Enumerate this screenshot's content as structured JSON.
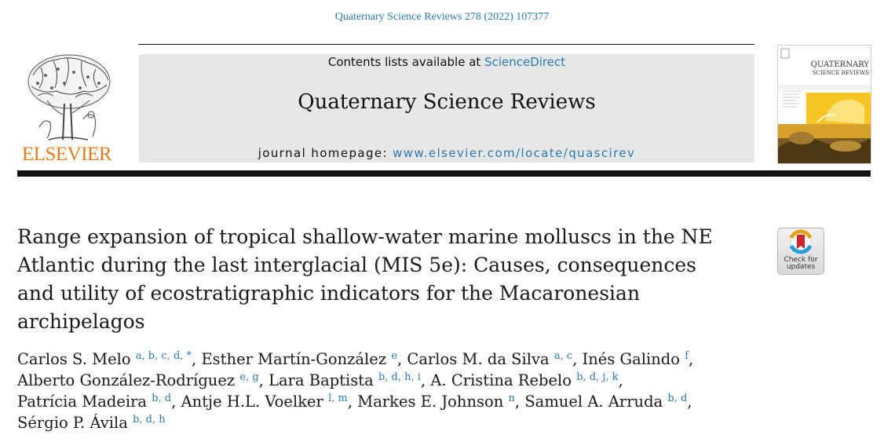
{
  "header": {
    "citation": "Quaternary Science Reviews 278 (2022) 107377",
    "publisher_word": "ELSEVIER",
    "contents_prefix": "Contents lists available at ",
    "contents_link": "ScienceDirect",
    "journal_name": "Quaternary Science Reviews",
    "homepage_prefix": "journal homepage: ",
    "homepage_link": "www.elsevier.com/locate/quascirev",
    "cover_title_1": "QUATERNARY",
    "cover_title_2": "SCIENCE REVIEWS"
  },
  "badge": {
    "line1": "Check for",
    "line2": "updates"
  },
  "article": {
    "title_line1": "Range expansion of tropical shallow-water marine molluscs in the NE",
    "title_line2": "Atlantic during the last interglacial (MIS 5e): Causes, consequences",
    "title_line3": "and utility of ecostratigraphic indicators for the Macaronesian",
    "title_line4": "archipelagos"
  },
  "authors": [
    {
      "name": "Carlos S. Melo",
      "aff": "a, b, c, d, *",
      "sep": ", "
    },
    {
      "name": "Esther Martín-González",
      "aff": "e",
      "sep": ", "
    },
    {
      "name": "Carlos M. da Silva",
      "aff": "a, c",
      "sep": ", "
    },
    {
      "name": "Inés Galindo",
      "aff": "f",
      "sep": ","
    },
    {
      "name": "Alberto González-Rodríguez",
      "aff": "e, g",
      "sep": ", "
    },
    {
      "name": "Lara Baptista",
      "aff": "b, d, h, i",
      "sep": ", "
    },
    {
      "name": "A. Cristina Rebelo",
      "aff": "b, d, j, k",
      "sep": ","
    },
    {
      "name": "Patrícia Madeira",
      "aff": "b, d",
      "sep": ", "
    },
    {
      "name": "Antje H.L. Voelker",
      "aff": "l, m",
      "sep": ", "
    },
    {
      "name": "Markes E. Johnson",
      "aff": "n",
      "sep": ", "
    },
    {
      "name": "Samuel A. Arruda",
      "aff": "b, d",
      "sep": ","
    },
    {
      "name": "Sérgio P. Ávila",
      "aff": "b, d, h",
      "sep": ""
    }
  ],
  "colors": {
    "link_blue": "#2a7ab0",
    "elsevier_orange": "#e77b1b",
    "banner_gray": "#e7e7e7"
  },
  "icons": {
    "publisher_logo": "elsevier-tree-icon",
    "cover": "journal-cover-image",
    "badge": "crossmark-icon"
  }
}
